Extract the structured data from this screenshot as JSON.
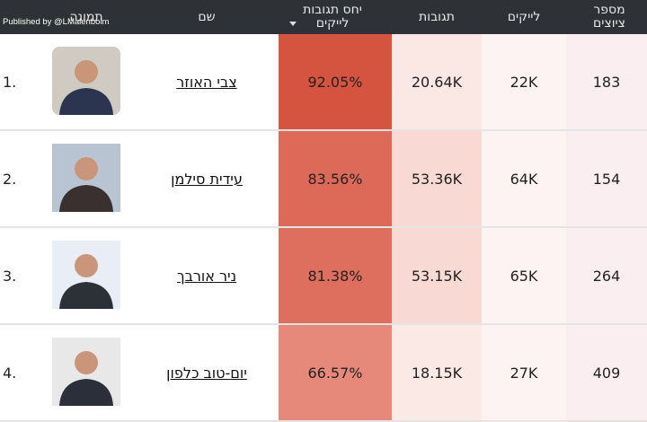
{
  "watermark": "Published by @LMalenboim",
  "table": {
    "headers": [
      "תמונה",
      "שם",
      "יחס תגובות לייקים",
      "תגובות",
      "לייקים",
      "מספר ציוצים"
    ],
    "rows": [
      [
        "1.",
        "צבי האוזר",
        "92.05%",
        "20.64K",
        "22K",
        "183"
      ],
      [
        "2.",
        "עידית סילמן",
        "83.56%",
        "53.36K",
        "64K",
        "154"
      ],
      [
        "3.",
        "ניר אורבך",
        "81.38%",
        "53.15K",
        "65K",
        "264"
      ],
      [
        "4.",
        "יום-טוב כלפון",
        "66.57%",
        "18.15K",
        "27K",
        "409"
      ]
    ]
  }
}
